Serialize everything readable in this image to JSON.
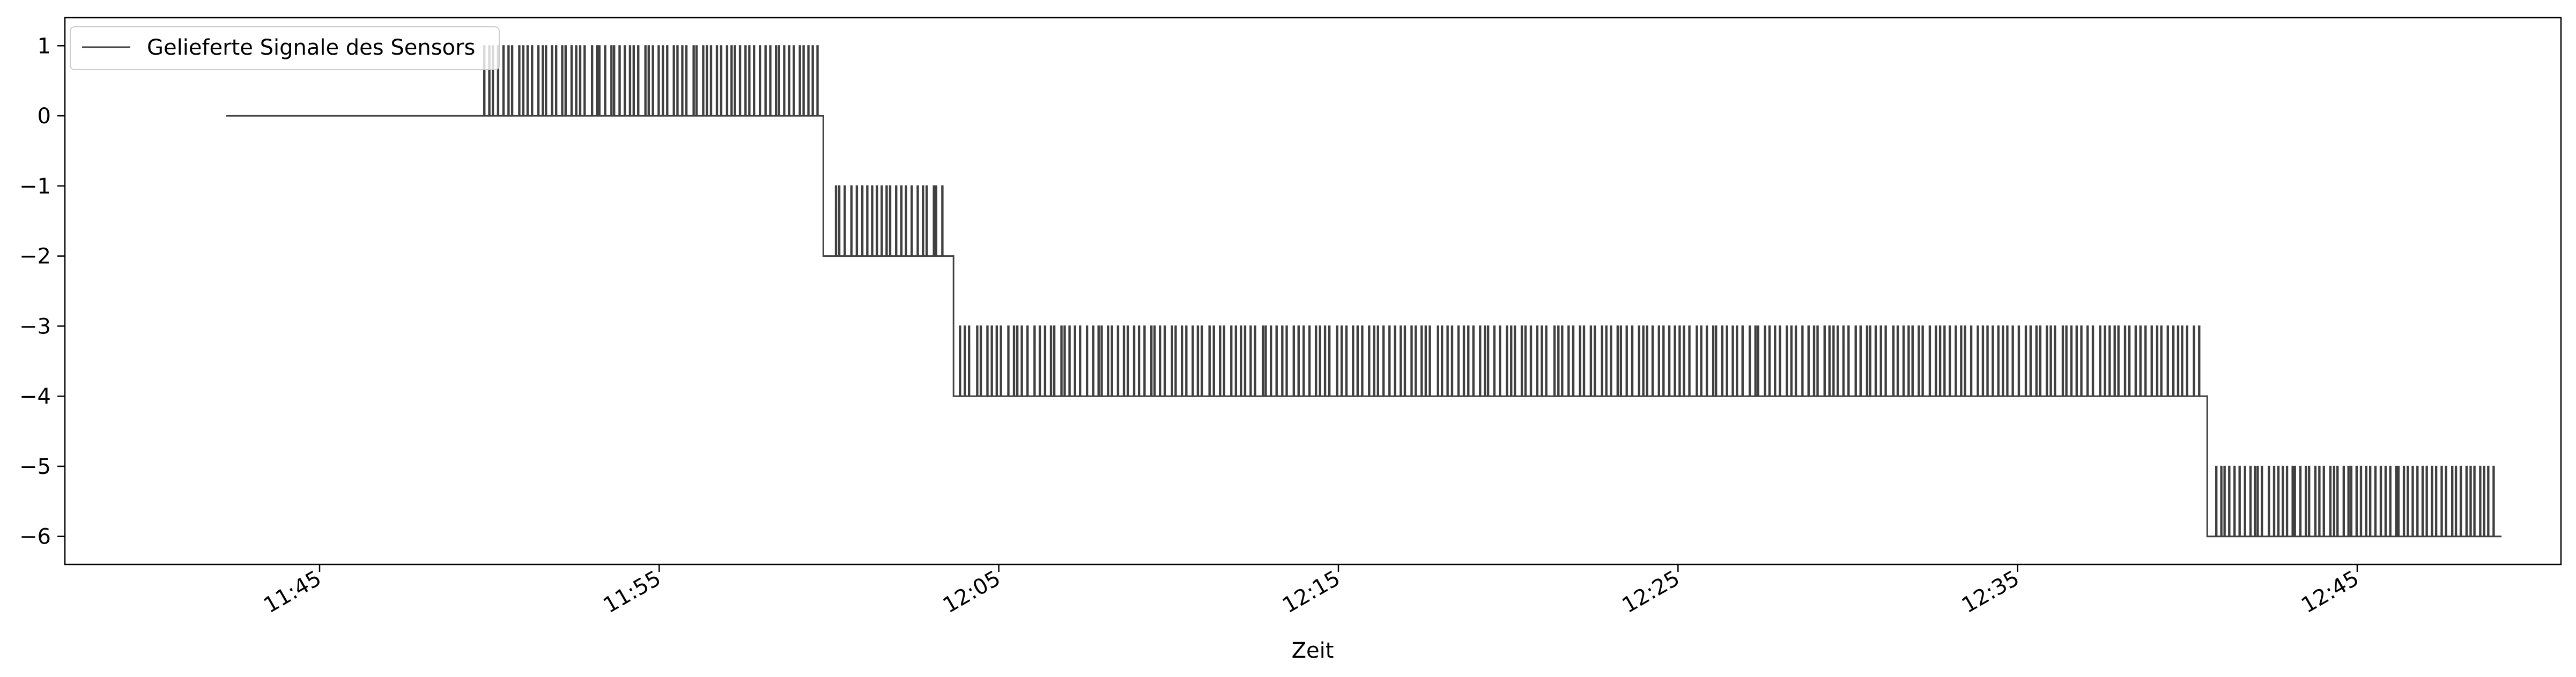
{
  "chart_data": {
    "type": "line",
    "title": "",
    "xlabel": "Zeit",
    "ylabel": "",
    "series": [
      {
        "name": "Gelieferte Signale des Sensors",
        "color": "#404040",
        "baseline_steps": [
          {
            "from": "11:42:15",
            "to": "11:59:50",
            "value": 0
          },
          {
            "from": "11:59:50",
            "to": "12:03:40",
            "value": -2
          },
          {
            "from": "12:03:40",
            "to": "12:40:35",
            "value": -4
          },
          {
            "from": "12:40:35",
            "to": "12:49:15",
            "value": -6
          }
        ],
        "pulse_segments": [
          {
            "from": "11:49:50",
            "to": "11:59:40",
            "base": 0,
            "peak": 1,
            "count": 70
          },
          {
            "from": "12:00:10",
            "to": "12:03:20",
            "base": -2,
            "peak": -1,
            "count": 22
          },
          {
            "from": "12:03:50",
            "to": "12:40:20",
            "base": -4,
            "peak": -3,
            "count": 235
          },
          {
            "from": "12:40:50",
            "to": "12:49:00",
            "base": -6,
            "peak": -5,
            "count": 60
          }
        ]
      }
    ],
    "x_ticks": [
      "11:45",
      "11:55",
      "12:05",
      "12:15",
      "12:25",
      "12:35",
      "12:45"
    ],
    "xlim": [
      "11:37:30",
      "12:51:00"
    ],
    "y_ticks": [
      "1",
      "0",
      "−1",
      "−2",
      "−3",
      "−4",
      "−5",
      "−6"
    ],
    "ylim": [
      -6.4,
      1.4
    ],
    "grid": false,
    "legend": "top-left"
  }
}
